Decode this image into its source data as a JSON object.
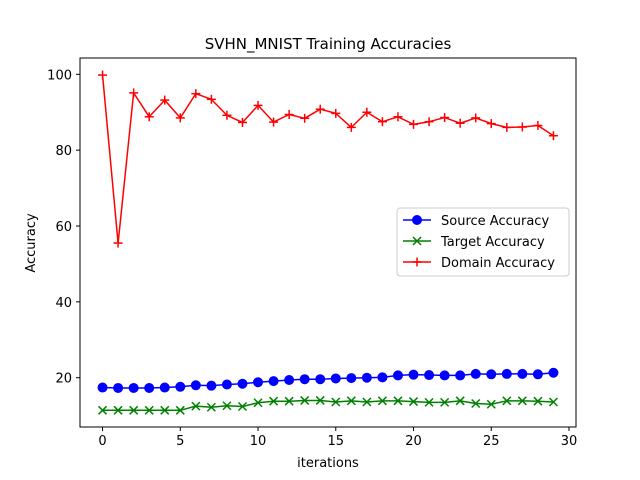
{
  "chart_data": {
    "type": "line",
    "title": "SVHN_MNIST Training Accuracies",
    "xlabel": "iterations",
    "ylabel": "Accuracy",
    "xlim": [
      -1.45,
      30.45
    ],
    "ylim": [
      7,
      104.3
    ],
    "xticks": [
      0,
      5,
      10,
      15,
      20,
      25,
      30
    ],
    "yticks": [
      20,
      40,
      60,
      80,
      100
    ],
    "grid": false,
    "legend_position": "center-right",
    "x": [
      0,
      1,
      2,
      3,
      4,
      5,
      6,
      7,
      8,
      9,
      10,
      11,
      12,
      13,
      14,
      15,
      16,
      17,
      18,
      19,
      20,
      21,
      22,
      23,
      24,
      25,
      26,
      27,
      28,
      29
    ],
    "series": [
      {
        "name": "Source Accuracy",
        "color": "#0000ff",
        "marker": "circle",
        "values": [
          17.4,
          17.3,
          17.3,
          17.3,
          17.4,
          17.6,
          18.0,
          17.9,
          18.2,
          18.4,
          18.8,
          19.1,
          19.4,
          19.6,
          19.6,
          19.8,
          19.9,
          20.0,
          20.1,
          20.6,
          20.8,
          20.7,
          20.6,
          20.6,
          21.0,
          20.9,
          21.0,
          21.0,
          20.9,
          21.3
        ]
      },
      {
        "name": "Target Accuracy",
        "color": "#008000",
        "marker": "x",
        "values": [
          11.4,
          11.4,
          11.4,
          11.4,
          11.4,
          11.4,
          12.5,
          12.2,
          12.6,
          12.4,
          13.4,
          13.8,
          13.8,
          14.0,
          14.0,
          13.6,
          13.9,
          13.6,
          13.9,
          13.9,
          13.7,
          13.5,
          13.5,
          13.9,
          13.2,
          13.0,
          13.9,
          13.9,
          13.8,
          13.6
        ]
      },
      {
        "name": "Domain Accuracy",
        "color": "#ff0000",
        "marker": "plus",
        "values": [
          99.8,
          55.5,
          95.1,
          88.8,
          93.2,
          88.5,
          94.9,
          93.4,
          89.2,
          87.3,
          91.8,
          87.4,
          89.4,
          88.4,
          90.8,
          89.7,
          86.0,
          90.0,
          87.5,
          88.8,
          86.8,
          87.5,
          88.6,
          87.1,
          88.5,
          87.0,
          86.0,
          86.1,
          86.5,
          83.8
        ]
      }
    ]
  }
}
